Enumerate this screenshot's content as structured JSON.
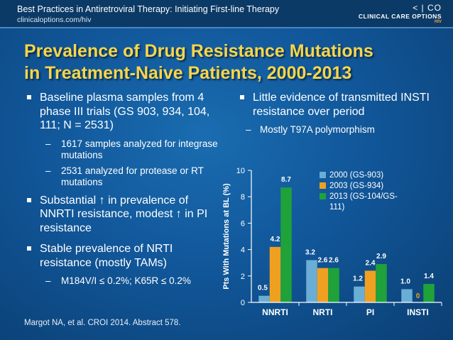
{
  "header": {
    "title": "Best Practices in Antiretroviral Therapy: Initiating First-line Therapy",
    "url": "clinicaloptions.com/hiv",
    "logo_mark": "< | CO",
    "logo_text": "CLINICAL CARE OPTIONS",
    "logo_sub": "HIV"
  },
  "slide_title": {
    "line1": "Prevalence of Drug Resistance Mutations",
    "line2": "in Treatment-Naive Patients, 2000-2013"
  },
  "left_bullets": {
    "b1": "Baseline plasma samples from 4 phase III trials (GS 903, 934, 104, 111; N = 2531)",
    "b1_sub1": "1617 samples analyzed for integrase mutations",
    "b1_sub2": "2531 analyzed for protease or RT mutations",
    "b2_pre": "Substantial",
    "b2_mid": "in prevalence of NNRTI resistance, modest",
    "b2_post": "in PI resistance",
    "up_arrow": "↑",
    "b3": "Stable prevalence of NRTI resistance (mostly TAMs)",
    "b3_sub1": "M184V/I ≤ 0.2%; K65R ≤ 0.2%"
  },
  "right_bullets": {
    "b1": "Little evidence of transmitted INSTI resistance over period",
    "b1_sub1": "Mostly T97A polymorphism"
  },
  "reference": "Margot NA, et al. CROI 2014. Abstract 578.",
  "colors": {
    "s1": "#6aaed6",
    "s2": "#f0a020",
    "s3": "#1fa23a",
    "title": "#f7d64a"
  },
  "chart_data": {
    "type": "bar",
    "categories": [
      "NNRTI",
      "NRTI",
      "PI",
      "INSTI"
    ],
    "series": [
      {
        "name": "2000 (GS-903)",
        "values": [
          0.5,
          3.2,
          1.2,
          1.0
        ]
      },
      {
        "name": "2003 (GS-934)",
        "values": [
          4.2,
          2.6,
          2.4,
          0
        ]
      },
      {
        "name": "2013 (GS-104/GS-111)",
        "values": [
          8.7,
          2.6,
          2.9,
          1.4
        ]
      }
    ],
    "legend_labels": [
      "2000 (GS-903)",
      "2003 (GS-934)",
      "2013 (GS-104/GS-",
      "111)"
    ],
    "data_labels": [
      [
        "0.5",
        "3.2",
        "1.2",
        "1.0"
      ],
      [
        "4.2",
        "2.6",
        "2.4",
        "0"
      ],
      [
        "8.7",
        "2.6",
        "2.9",
        "1.4"
      ]
    ],
    "ylabel": "Pts With Mutations at BL (%)",
    "yticks": [
      "0",
      "2",
      "4",
      "6",
      "8",
      "10"
    ],
    "ylim": [
      0,
      10
    ],
    "legend_position": "top-right"
  }
}
